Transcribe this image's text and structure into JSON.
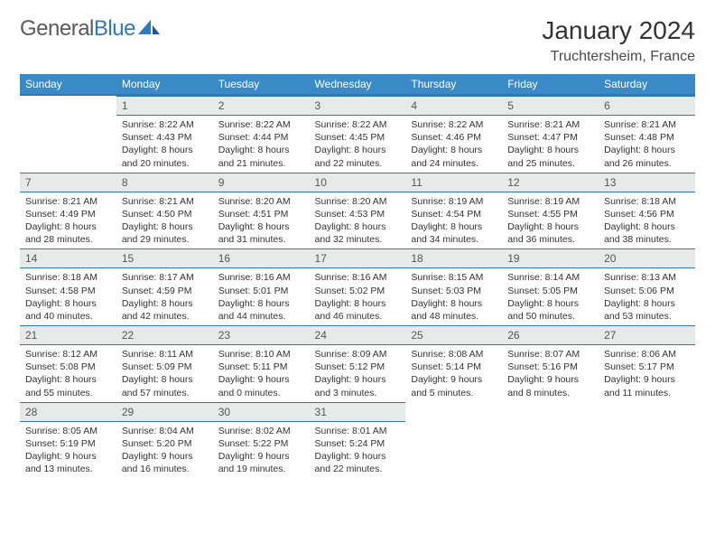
{
  "brand": {
    "pre": "General",
    "post": "Blue"
  },
  "title": "January 2024",
  "location": "Truchtersheim, France",
  "colors": {
    "header_bg": "#3a8ac8",
    "header_border": "#2f78b5",
    "daynum_bg": "#e8e9e9",
    "text": "#333333"
  },
  "weekdays": [
    "Sunday",
    "Monday",
    "Tuesday",
    "Wednesday",
    "Thursday",
    "Friday",
    "Saturday"
  ],
  "weeks": [
    [
      null,
      {
        "n": "1",
        "sr": "8:22 AM",
        "ss": "4:43 PM",
        "dl": "8 hours and 20 minutes."
      },
      {
        "n": "2",
        "sr": "8:22 AM",
        "ss": "4:44 PM",
        "dl": "8 hours and 21 minutes."
      },
      {
        "n": "3",
        "sr": "8:22 AM",
        "ss": "4:45 PM",
        "dl": "8 hours and 22 minutes."
      },
      {
        "n": "4",
        "sr": "8:22 AM",
        "ss": "4:46 PM",
        "dl": "8 hours and 24 minutes."
      },
      {
        "n": "5",
        "sr": "8:21 AM",
        "ss": "4:47 PM",
        "dl": "8 hours and 25 minutes."
      },
      {
        "n": "6",
        "sr": "8:21 AM",
        "ss": "4:48 PM",
        "dl": "8 hours and 26 minutes."
      }
    ],
    [
      {
        "n": "7",
        "sr": "8:21 AM",
        "ss": "4:49 PM",
        "dl": "8 hours and 28 minutes."
      },
      {
        "n": "8",
        "sr": "8:21 AM",
        "ss": "4:50 PM",
        "dl": "8 hours and 29 minutes."
      },
      {
        "n": "9",
        "sr": "8:20 AM",
        "ss": "4:51 PM",
        "dl": "8 hours and 31 minutes."
      },
      {
        "n": "10",
        "sr": "8:20 AM",
        "ss": "4:53 PM",
        "dl": "8 hours and 32 minutes."
      },
      {
        "n": "11",
        "sr": "8:19 AM",
        "ss": "4:54 PM",
        "dl": "8 hours and 34 minutes."
      },
      {
        "n": "12",
        "sr": "8:19 AM",
        "ss": "4:55 PM",
        "dl": "8 hours and 36 minutes."
      },
      {
        "n": "13",
        "sr": "8:18 AM",
        "ss": "4:56 PM",
        "dl": "8 hours and 38 minutes."
      }
    ],
    [
      {
        "n": "14",
        "sr": "8:18 AM",
        "ss": "4:58 PM",
        "dl": "8 hours and 40 minutes."
      },
      {
        "n": "15",
        "sr": "8:17 AM",
        "ss": "4:59 PM",
        "dl": "8 hours and 42 minutes."
      },
      {
        "n": "16",
        "sr": "8:16 AM",
        "ss": "5:01 PM",
        "dl": "8 hours and 44 minutes."
      },
      {
        "n": "17",
        "sr": "8:16 AM",
        "ss": "5:02 PM",
        "dl": "8 hours and 46 minutes."
      },
      {
        "n": "18",
        "sr": "8:15 AM",
        "ss": "5:03 PM",
        "dl": "8 hours and 48 minutes."
      },
      {
        "n": "19",
        "sr": "8:14 AM",
        "ss": "5:05 PM",
        "dl": "8 hours and 50 minutes."
      },
      {
        "n": "20",
        "sr": "8:13 AM",
        "ss": "5:06 PM",
        "dl": "8 hours and 53 minutes."
      }
    ],
    [
      {
        "n": "21",
        "sr": "8:12 AM",
        "ss": "5:08 PM",
        "dl": "8 hours and 55 minutes."
      },
      {
        "n": "22",
        "sr": "8:11 AM",
        "ss": "5:09 PM",
        "dl": "8 hours and 57 minutes."
      },
      {
        "n": "23",
        "sr": "8:10 AM",
        "ss": "5:11 PM",
        "dl": "9 hours and 0 minutes."
      },
      {
        "n": "24",
        "sr": "8:09 AM",
        "ss": "5:12 PM",
        "dl": "9 hours and 3 minutes."
      },
      {
        "n": "25",
        "sr": "8:08 AM",
        "ss": "5:14 PM",
        "dl": "9 hours and 5 minutes."
      },
      {
        "n": "26",
        "sr": "8:07 AM",
        "ss": "5:16 PM",
        "dl": "9 hours and 8 minutes."
      },
      {
        "n": "27",
        "sr": "8:06 AM",
        "ss": "5:17 PM",
        "dl": "9 hours and 11 minutes."
      }
    ],
    [
      {
        "n": "28",
        "sr": "8:05 AM",
        "ss": "5:19 PM",
        "dl": "9 hours and 13 minutes."
      },
      {
        "n": "29",
        "sr": "8:04 AM",
        "ss": "5:20 PM",
        "dl": "9 hours and 16 minutes."
      },
      {
        "n": "30",
        "sr": "8:02 AM",
        "ss": "5:22 PM",
        "dl": "9 hours and 19 minutes."
      },
      {
        "n": "31",
        "sr": "8:01 AM",
        "ss": "5:24 PM",
        "dl": "9 hours and 22 minutes."
      },
      null,
      null,
      null
    ]
  ],
  "labels": {
    "sunrise": "Sunrise:",
    "sunset": "Sunset:",
    "daylight": "Daylight:"
  }
}
